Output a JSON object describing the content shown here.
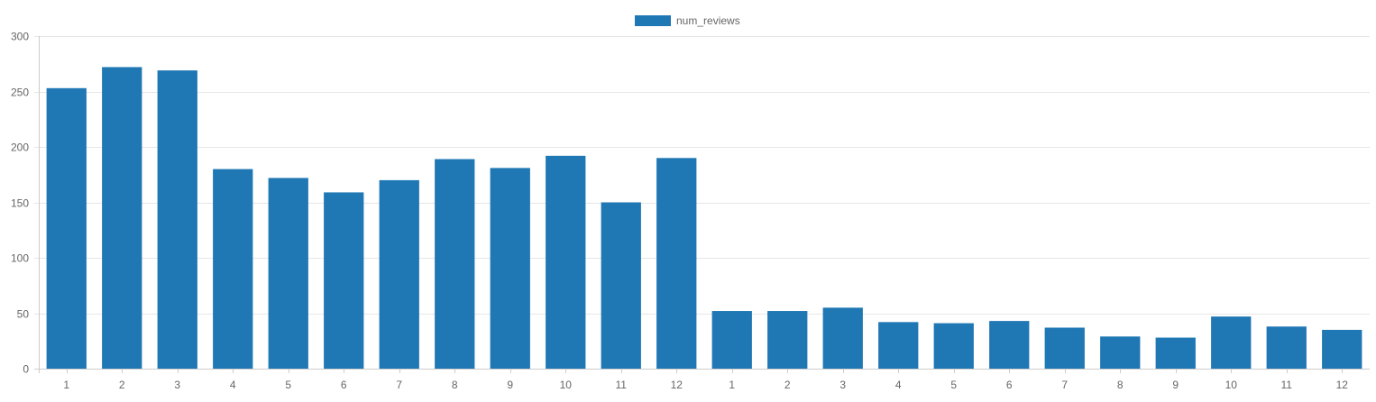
{
  "chart_data": {
    "type": "bar",
    "title": "",
    "xlabel": "",
    "ylabel": "",
    "categories": [
      "1",
      "2",
      "3",
      "4",
      "5",
      "6",
      "7",
      "8",
      "9",
      "10",
      "11",
      "12",
      "1",
      "2",
      "3",
      "4",
      "5",
      "6",
      "7",
      "8",
      "9",
      "10",
      "11",
      "12"
    ],
    "series": [
      {
        "name": "num_reviews",
        "color": "#1f77b4",
        "values": [
          253,
          272,
          269,
          180,
          172,
          159,
          170,
          189,
          181,
          192,
          150,
          190,
          52,
          52,
          55,
          42,
          41,
          43,
          37,
          29,
          28,
          47,
          38,
          35
        ]
      }
    ],
    "ylim": [
      0,
      300
    ],
    "yticks": [
      0,
      50,
      100,
      150,
      200,
      250,
      300
    ],
    "grid": true,
    "legend_position": "top-center"
  }
}
